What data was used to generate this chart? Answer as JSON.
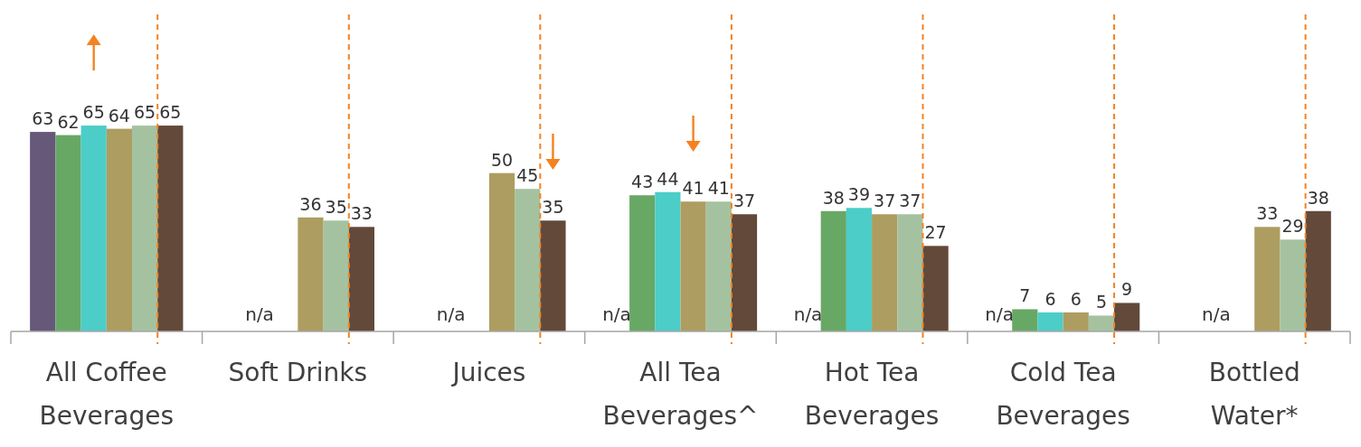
{
  "chart_data": {
    "type": "bar",
    "categories": [
      "All Coffee Beverages",
      "Soft Drinks",
      "Juices",
      "All Tea Beverages^",
      "Hot Tea Beverages",
      "Cold Tea Beverages",
      "Bottled Water*"
    ],
    "series": [
      {
        "color": "#665878",
        "values": [
          63,
          null,
          null,
          null,
          null,
          null,
          null
        ],
        "value_labels": [
          "63",
          null,
          null,
          "n/a",
          "n/a",
          "n/a",
          null
        ]
      },
      {
        "color": "#68a865",
        "values": [
          62,
          null,
          null,
          43,
          38,
          7,
          null
        ],
        "value_labels": [
          "62",
          "n/a",
          "n/a",
          "43",
          "38",
          "7",
          "n/a"
        ]
      },
      {
        "color": "#4ccdc8",
        "values": [
          65,
          null,
          null,
          44,
          39,
          6,
          null
        ],
        "value_labels": [
          "65",
          null,
          null,
          "44",
          "39",
          "6",
          null
        ]
      },
      {
        "color": "#ad9d60",
        "values": [
          64,
          36,
          50,
          41,
          37,
          6,
          33
        ],
        "value_labels": [
          "64",
          "36",
          "50",
          "41",
          "37",
          "6",
          "33"
        ]
      },
      {
        "color": "#a5c2a0",
        "values": [
          65,
          35,
          45,
          41,
          37,
          5,
          29
        ],
        "value_labels": [
          "65",
          "35",
          "45",
          "41",
          "37",
          "5",
          "29"
        ]
      },
      {
        "color": "#62493a",
        "values": [
          65,
          33,
          35,
          37,
          27,
          9,
          38
        ],
        "value_labels": [
          "65",
          "33",
          "35",
          "37",
          "27",
          "9",
          "38"
        ]
      }
    ],
    "data_labels": true,
    "ref_lines": [
      {
        "axis": "x",
        "value": "All Coffee Beverages",
        "color": "#f58220",
        "line_style": "dashed"
      },
      {
        "axis": "x",
        "value": "Soft Drinks",
        "color": "#f58220",
        "line_style": "dashed"
      },
      {
        "axis": "x",
        "value": "Juices",
        "color": "#f58220",
        "line_style": "dashed"
      },
      {
        "axis": "x",
        "value": "All Tea Beverages^",
        "color": "#f58220",
        "line_style": "dashed"
      },
      {
        "axis": "x",
        "value": "Hot Tea Beverages",
        "color": "#f58220",
        "line_style": "dashed"
      },
      {
        "axis": "x",
        "value": "Cold Tea Beverages",
        "color": "#f58220",
        "line_style": "dashed"
      },
      {
        "axis": "x",
        "value": "Bottled Water*",
        "color": "#f58220",
        "line_style": "dashed"
      }
    ]
  }
}
